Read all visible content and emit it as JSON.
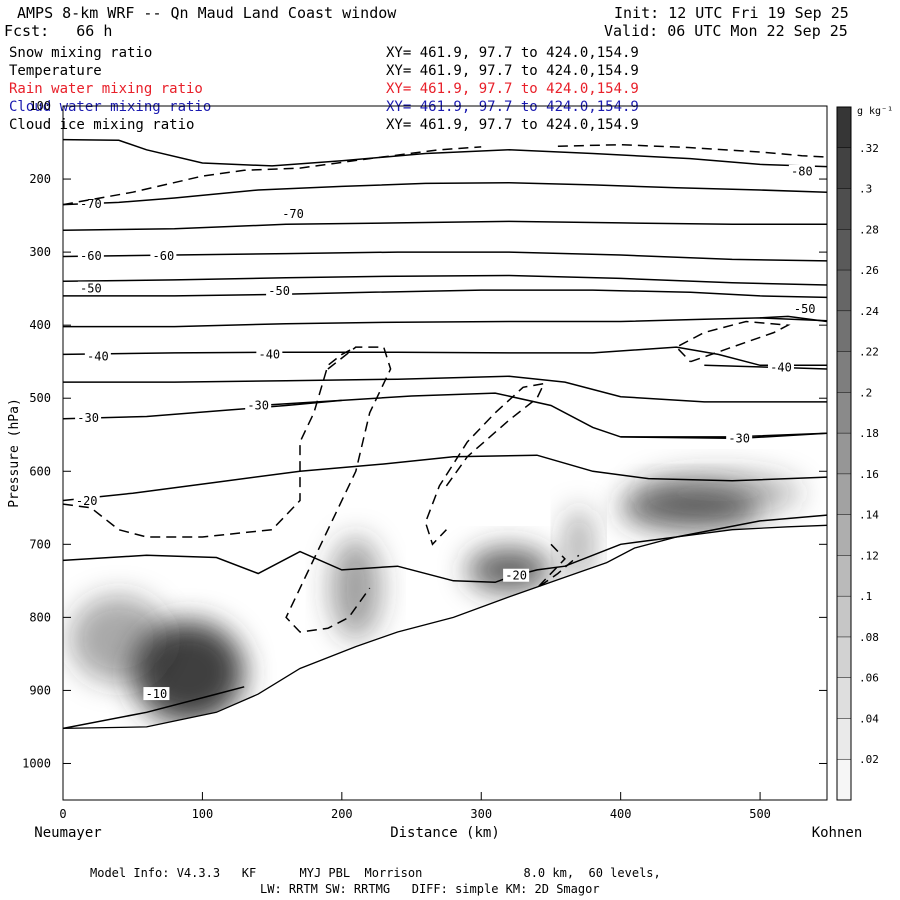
{
  "header": {
    "title": "AMPS 8-km WRF -- Qn Maud Land Coast window",
    "init": "Init: 12 UTC Fri 19 Sep 25",
    "fcst": "Fcst:   66 h",
    "valid": "Valid: 06 UTC Mon 22 Sep 25"
  },
  "variables": [
    {
      "name": "Snow mixing ratio",
      "xy": "XY= 461.9, 97.7 to 424.0,154.9",
      "color": "#000000"
    },
    {
      "name": "Temperature",
      "xy": "XY= 461.9, 97.7 to 424.0,154.9",
      "color": "#000000"
    },
    {
      "name": "Rain water mixing ratio",
      "xy": "XY= 461.9, 97.7 to 424.0,154.9",
      "color": "#e8202a"
    },
    {
      "name": "Cloud water mixing ratio",
      "xy": "XY= 461.9, 97.7 to 424.0,154.9",
      "color": "#1a1ab0"
    },
    {
      "name": "Cloud ice mixing ratio",
      "xy": "XY= 461.9, 97.7 to 424.0,154.9",
      "color": "#000000"
    }
  ],
  "footer": {
    "line1": "Model Info: V4.3.3   KF      MYJ PBL  Morrison              8.0 km,  60 levels,",
    "line2": "LW: RRTM SW: RRTMG   DIFF: simple KM: 2D Smagor"
  },
  "chart_data": {
    "type": "heatmap",
    "title": "AMPS 8-km WRF -- Qn Maud Land Coast window",
    "xlabel": "Distance (km)",
    "ylabel": "Pressure (hPa)",
    "xlim": [
      0,
      548
    ],
    "ylim": [
      100,
      1050
    ],
    "x_ticks": [
      0,
      100,
      200,
      300,
      400,
      500
    ],
    "y_ticks": [
      100,
      200,
      300,
      400,
      500,
      600,
      700,
      800,
      900,
      1000
    ],
    "x_end_labels": {
      "left": "Neumayer",
      "right": "Kohnen"
    },
    "colorbar": {
      "units": "g kg⁻¹",
      "min": 0,
      "max": 0.34,
      "ticks": [
        0.02,
        0.04,
        0.06,
        0.08,
        0.1,
        0.12,
        0.14,
        0.16,
        0.18,
        0.2,
        0.22,
        0.24,
        0.26,
        0.28,
        0.3,
        0.32
      ],
      "tick_labels": [
        ".02",
        ".04",
        ".06",
        ".08",
        ".1",
        ".12",
        ".14",
        ".16",
        ".18",
        ".2",
        ".22",
        ".24",
        ".26",
        ".28",
        ".3",
        ".32"
      ]
    },
    "terrain_surface": [
      [
        0,
        952
      ],
      [
        60,
        950
      ],
      [
        110,
        930
      ],
      [
        140,
        905
      ],
      [
        170,
        870
      ],
      [
        210,
        840
      ],
      [
        240,
        820
      ],
      [
        280,
        800
      ],
      [
        320,
        772
      ],
      [
        360,
        745
      ],
      [
        390,
        725
      ],
      [
        410,
        705
      ],
      [
        440,
        690
      ],
      [
        480,
        680
      ],
      [
        520,
        676
      ],
      [
        548,
        674
      ]
    ],
    "temperature_isotherms": [
      {
        "label": "-80",
        "label_at": [
          530,
          190
        ],
        "points": [
          [
            0,
            146
          ],
          [
            40,
            147
          ],
          [
            60,
            160
          ],
          [
            100,
            178
          ],
          [
            150,
            182
          ],
          [
            200,
            175
          ],
          [
            260,
            165
          ],
          [
            320,
            160
          ],
          [
            380,
            165
          ],
          [
            450,
            172
          ],
          [
            500,
            180
          ],
          [
            548,
            183
          ]
        ]
      },
      {
        "label": "-70",
        "label_at": [
          20,
          234
        ],
        "points": [
          [
            0,
            235
          ],
          [
            40,
            232
          ],
          [
            80,
            226
          ],
          [
            140,
            215
          ],
          [
            200,
            210
          ],
          [
            260,
            206
          ],
          [
            320,
            205
          ],
          [
            380,
            208
          ],
          [
            440,
            212
          ],
          [
            500,
            215
          ],
          [
            548,
            218
          ]
        ]
      },
      {
        "label": "-70",
        "label_at": [
          165,
          248
        ],
        "points": [
          [
            0,
            270
          ],
          [
            80,
            268
          ],
          [
            160,
            262
          ],
          [
            240,
            260
          ],
          [
            320,
            258
          ],
          [
            400,
            260
          ],
          [
            480,
            262
          ],
          [
            548,
            262
          ]
        ]
      },
      {
        "label": "-60",
        "label_at": [
          20,
          305
        ],
        "points": [
          [
            0,
            306
          ],
          [
            80,
            304
          ],
          [
            160,
            302
          ],
          [
            240,
            300
          ],
          [
            320,
            300
          ],
          [
            400,
            304
          ],
          [
            480,
            310
          ],
          [
            548,
            312
          ]
        ]
      },
      {
        "label": "-60",
        "label_at": [
          72,
          305
        ],
        "points": [
          [
            0,
            340
          ],
          [
            80,
            338
          ],
          [
            160,
            335
          ],
          [
            240,
            333
          ],
          [
            320,
            332
          ],
          [
            400,
            336
          ],
          [
            480,
            342
          ],
          [
            548,
            345
          ]
        ]
      },
      {
        "label": "-50",
        "label_at": [
          20,
          350
        ],
        "points": [
          [
            0,
            360
          ],
          [
            80,
            360
          ],
          [
            150,
            358
          ],
          [
            220,
            355
          ],
          [
            300,
            352
          ],
          [
            380,
            352
          ],
          [
            450,
            355
          ],
          [
            500,
            360
          ],
          [
            548,
            362
          ]
        ]
      },
      {
        "label": "-50",
        "label_at": [
          155,
          353
        ],
        "points": [
          [
            0,
            402
          ],
          [
            80,
            402
          ],
          [
            160,
            398
          ],
          [
            240,
            396
          ],
          [
            320,
            395
          ],
          [
            400,
            395
          ],
          [
            460,
            392
          ],
          [
            500,
            390
          ],
          [
            548,
            394
          ]
        ]
      },
      {
        "label": "-50",
        "label_at": [
          532,
          378
        ],
        "points": [
          [
            500,
            390
          ],
          [
            520,
            388
          ],
          [
            548,
            395
          ]
        ]
      },
      {
        "label": "-40",
        "label_at": [
          25,
          443
        ],
        "points": [
          [
            0,
            440
          ],
          [
            80,
            438
          ],
          [
            160,
            437
          ],
          [
            240,
            437
          ],
          [
            320,
            438
          ],
          [
            380,
            438
          ],
          [
            440,
            430
          ],
          [
            470,
            440
          ],
          [
            500,
            455
          ],
          [
            548,
            455
          ]
        ]
      },
      {
        "label": "-40",
        "label_at": [
          148,
          440
        ],
        "points": [
          [
            0,
            478
          ],
          [
            80,
            478
          ],
          [
            160,
            476
          ],
          [
            240,
            474
          ],
          [
            320,
            470
          ],
          [
            360,
            478
          ],
          [
            400,
            498
          ],
          [
            460,
            505
          ],
          [
            548,
            505
          ]
        ]
      },
      {
        "label": "-40",
        "label_at": [
          515,
          458
        ],
        "points": [
          [
            460,
            455
          ],
          [
            515,
            458
          ],
          [
            548,
            460
          ]
        ]
      },
      {
        "label": "-30",
        "label_at": [
          18,
          527
        ],
        "points": [
          [
            0,
            528
          ],
          [
            60,
            525
          ],
          [
            120,
            516
          ],
          [
            160,
            510
          ],
          [
            200,
            503
          ],
          [
            250,
            497
          ],
          [
            310,
            493
          ],
          [
            350,
            510
          ],
          [
            380,
            540
          ],
          [
            400,
            553
          ],
          [
            480,
            553
          ],
          [
            548,
            548
          ]
        ]
      },
      {
        "label": "-30",
        "label_at": [
          140,
          510
        ],
        "points": [
          [
            140,
            510
          ],
          [
            200,
            503
          ]
        ]
      },
      {
        "label": "-30",
        "label_at": [
          485,
          555
        ],
        "points": [
          [
            400,
            553
          ],
          [
            485,
            555
          ],
          [
            548,
            548
          ]
        ]
      },
      {
        "label": "-20",
        "label_at": [
          17,
          641
        ],
        "points": [
          [
            0,
            640
          ],
          [
            50,
            630
          ],
          [
            110,
            615
          ],
          [
            170,
            600
          ],
          [
            230,
            590
          ],
          [
            280,
            580
          ],
          [
            340,
            578
          ],
          [
            380,
            600
          ],
          [
            420,
            610
          ],
          [
            480,
            613
          ],
          [
            548,
            608
          ]
        ]
      },
      {
        "label": "-20",
        "label_at": [
          325,
          743
        ],
        "points": [
          [
            0,
            722
          ],
          [
            60,
            715
          ],
          [
            110,
            718
          ],
          [
            140,
            740
          ],
          [
            170,
            710
          ],
          [
            200,
            735
          ],
          [
            240,
            730
          ],
          [
            280,
            750
          ],
          [
            310,
            752
          ],
          [
            320,
            745
          ],
          [
            340,
            735
          ],
          [
            360,
            730
          ],
          [
            400,
            700
          ],
          [
            440,
            690
          ],
          [
            500,
            668
          ],
          [
            548,
            660
          ]
        ]
      },
      {
        "label": "-10",
        "label_at": [
          67,
          905
        ],
        "points": [
          [
            0,
            952
          ],
          [
            60,
            930
          ],
          [
            110,
            905
          ],
          [
            130,
            895
          ]
        ]
      }
    ],
    "snow_mixing_ratio_shading": [
      {
        "x": 90,
        "p": 875,
        "peak": 0.32,
        "sx": 40,
        "sp": 70
      },
      {
        "x": 40,
        "p": 830,
        "peak": 0.14,
        "sx": 35,
        "sp": 60
      },
      {
        "x": 210,
        "p": 760,
        "peak": 0.16,
        "sx": 18,
        "sp": 70
      },
      {
        "x": 320,
        "p": 735,
        "peak": 0.26,
        "sx": 30,
        "sp": 30
      },
      {
        "x": 370,
        "p": 700,
        "peak": 0.14,
        "sx": 10,
        "sp": 50
      },
      {
        "x": 450,
        "p": 650,
        "peak": 0.24,
        "sx": 50,
        "sp": 30
      },
      {
        "x": 470,
        "p": 630,
        "peak": 0.12,
        "sx": 60,
        "sp": 30
      }
    ],
    "cloud_ice_contours_dashed": [
      {
        "points": [
          [
            0,
            235
          ],
          [
            50,
            218
          ],
          [
            100,
            196
          ],
          [
            130,
            188
          ],
          [
            170,
            185
          ],
          [
            220,
            172
          ],
          [
            270,
            160
          ],
          [
            300,
            156
          ]
        ]
      },
      {
        "points": [
          [
            355,
            155
          ],
          [
            400,
            153
          ],
          [
            450,
            157
          ],
          [
            500,
            163
          ],
          [
            530,
            168
          ],
          [
            548,
            170
          ]
        ]
      },
      {
        "points": [
          [
            0,
            645
          ],
          [
            20,
            650
          ],
          [
            40,
            680
          ],
          [
            60,
            690
          ],
          [
            100,
            690
          ],
          [
            150,
            680
          ],
          [
            170,
            640
          ],
          [
            170,
            560
          ],
          [
            180,
            520
          ],
          [
            190,
            455
          ],
          [
            200,
            440
          ],
          [
            210,
            430
          ]
        ]
      },
      {
        "points": [
          [
            190,
            460
          ],
          [
            210,
            430
          ],
          [
            230,
            430
          ],
          [
            235,
            460
          ],
          [
            220,
            520
          ],
          [
            210,
            600
          ],
          [
            175,
            740
          ],
          [
            160,
            800
          ],
          [
            170,
            820
          ],
          [
            190,
            815
          ],
          [
            205,
            800
          ],
          [
            220,
            760
          ]
        ]
      },
      {
        "points": [
          [
            275,
            620
          ],
          [
            290,
            580
          ],
          [
            320,
            530
          ],
          [
            340,
            500
          ],
          [
            345,
            480
          ],
          [
            330,
            485
          ],
          [
            310,
            520
          ],
          [
            290,
            560
          ],
          [
            270,
            620
          ],
          [
            260,
            670
          ],
          [
            265,
            700
          ],
          [
            275,
            680
          ]
        ]
      },
      {
        "points": [
          [
            450,
            450
          ],
          [
            480,
            430
          ],
          [
            510,
            410
          ],
          [
            520,
            400
          ],
          [
            490,
            395
          ],
          [
            460,
            410
          ],
          [
            440,
            430
          ],
          [
            450,
            450
          ]
        ]
      },
      {
        "points": [
          [
            350,
            700
          ],
          [
            360,
            720
          ],
          [
            340,
            760
          ],
          [
            355,
            740
          ],
          [
            370,
            715
          ]
        ]
      }
    ]
  }
}
